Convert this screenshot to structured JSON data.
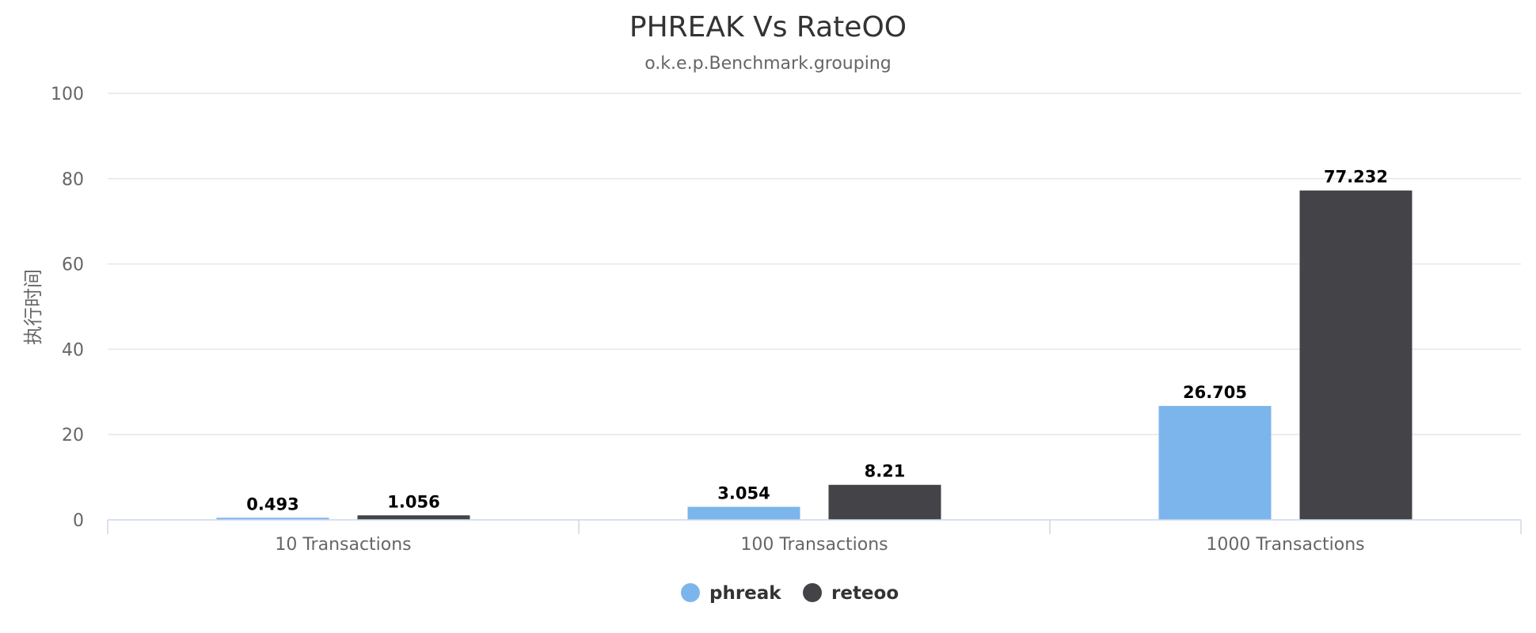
{
  "chart_data": {
    "type": "bar",
    "title": "PHREAK Vs RateOO",
    "subtitle": "o.k.e.p.Benchmark.grouping",
    "ylabel": "执行时间",
    "xlabel": "",
    "categories": [
      "10 Transactions",
      "100 Transactions",
      "1000 Transactions"
    ],
    "series": [
      {
        "name": "phreak",
        "color": "#7cb5ec",
        "values": [
          0.493,
          3.054,
          26.705
        ]
      },
      {
        "name": "reteoo",
        "color": "#434348",
        "values": [
          1.056,
          8.21,
          77.232
        ]
      }
    ],
    "ylim": [
      0,
      100
    ],
    "yticks": [
      0,
      20,
      40,
      60,
      80,
      100
    ],
    "grid": true,
    "legend_position": "bottom-center",
    "data_labels": true
  }
}
